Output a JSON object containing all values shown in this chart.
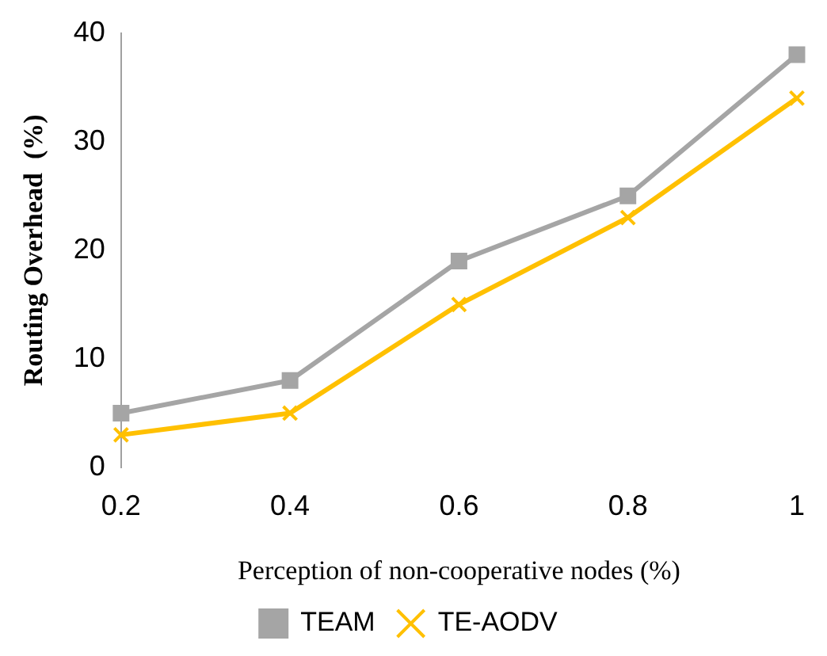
{
  "chart_data": {
    "type": "line",
    "xlabel": "Perception of non-cooperative nodes (%)",
    "ylabel": "Routing Overhead  (%)",
    "categories": [
      "0.2",
      "0.4",
      "0.6",
      "0.8",
      "1"
    ],
    "series": [
      {
        "name": "TEAM",
        "color": "#a5a5a5",
        "marker": "square",
        "values": [
          5,
          8,
          19,
          25,
          38
        ]
      },
      {
        "name": "TE-AODV",
        "color": "#ffc000",
        "marker": "cross",
        "values": [
          3,
          5,
          15,
          23,
          34
        ]
      }
    ],
    "ylim": [
      0,
      40
    ],
    "yticks": [
      0,
      10,
      20,
      30,
      40
    ],
    "grid": false,
    "legend": "bottom",
    "line_style": "solid"
  }
}
